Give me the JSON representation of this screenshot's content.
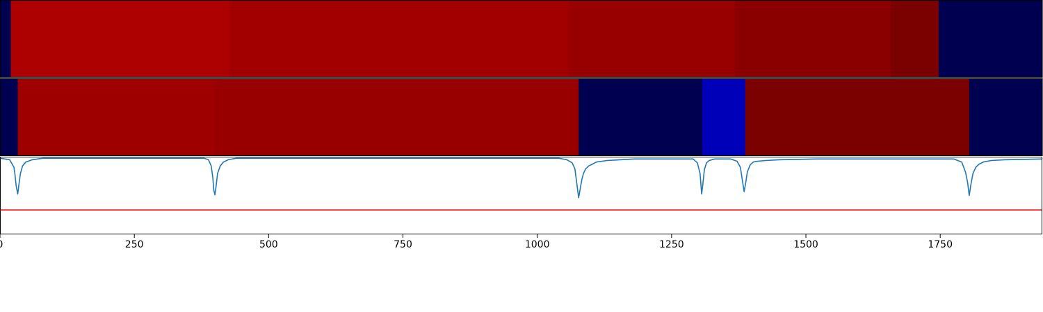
{
  "chart_data": [
    {
      "type": "heatmap",
      "xlim": [
        0,
        1940
      ],
      "segments": [
        {
          "start": 0,
          "end": 20,
          "color": "#000050"
        },
        {
          "start": 20,
          "end": 427,
          "color": "#ad0000"
        },
        {
          "start": 427,
          "end": 1058,
          "color": "#a20000"
        },
        {
          "start": 1058,
          "end": 1368,
          "color": "#980000"
        },
        {
          "start": 1368,
          "end": 1658,
          "color": "#8a0000"
        },
        {
          "start": 1658,
          "end": 1747,
          "color": "#7b0000"
        },
        {
          "start": 1747,
          "end": 1940,
          "color": "#000050"
        }
      ]
    },
    {
      "type": "heatmap",
      "xlim": [
        0,
        1940
      ],
      "segments": [
        {
          "start": 0,
          "end": 33,
          "color": "#000050"
        },
        {
          "start": 33,
          "end": 400,
          "color": "#9e0000"
        },
        {
          "start": 400,
          "end": 1077,
          "color": "#980000"
        },
        {
          "start": 1077,
          "end": 1307,
          "color": "#000050"
        },
        {
          "start": 1307,
          "end": 1387,
          "color": "#0000b8"
        },
        {
          "start": 1387,
          "end": 1804,
          "color": "#7b0000"
        },
        {
          "start": 1804,
          "end": 1940,
          "color": "#000050"
        }
      ]
    },
    {
      "type": "line",
      "xlim": [
        0,
        1940
      ],
      "ylim": [
        -1.0,
        0.02
      ],
      "xticks": [
        0,
        250,
        500,
        750,
        1000,
        1250,
        1500,
        1750
      ],
      "xtick_labels": [
        "0",
        "250",
        "500",
        "750",
        "1000",
        "1250",
        "1500",
        "1750"
      ],
      "threshold": {
        "value": -0.68,
        "color": "#ff0000"
      },
      "series": [
        {
          "color": "#1f77b4",
          "x": [
            0,
            18,
            26,
            28,
            30,
            33,
            35,
            38,
            42,
            48,
            60,
            80,
            380,
            388,
            393,
            396,
            398,
            400,
            402,
            405,
            410,
            416,
            425,
            440,
            1040,
            1055,
            1065,
            1070,
            1073,
            1077,
            1080,
            1083,
            1086,
            1090,
            1096,
            1102,
            1110,
            1130,
            1180,
            1290,
            1298,
            1303,
            1306,
            1308,
            1311,
            1315,
            1320,
            1330,
            1360,
            1372,
            1378,
            1382,
            1385,
            1388,
            1391,
            1396,
            1402,
            1410,
            1425,
            1450,
            1520,
            1775,
            1790,
            1797,
            1801,
            1804,
            1807,
            1811,
            1816,
            1822,
            1830,
            1845,
            1870,
            1940
          ],
          "y": [
            0,
            -0.02,
            -0.12,
            -0.22,
            -0.36,
            -0.47,
            -0.36,
            -0.2,
            -0.1,
            -0.05,
            -0.02,
            0,
            0,
            -0.02,
            -0.1,
            -0.25,
            -0.42,
            -0.48,
            -0.38,
            -0.2,
            -0.1,
            -0.05,
            -0.02,
            0,
            0,
            -0.02,
            -0.06,
            -0.14,
            -0.3,
            -0.52,
            -0.4,
            -0.28,
            -0.2,
            -0.14,
            -0.1,
            -0.08,
            -0.05,
            -0.03,
            -0.01,
            -0.01,
            -0.06,
            -0.2,
            -0.47,
            -0.35,
            -0.15,
            -0.06,
            -0.03,
            -0.01,
            -0.01,
            -0.04,
            -0.12,
            -0.3,
            -0.44,
            -0.32,
            -0.18,
            -0.09,
            -0.05,
            -0.04,
            -0.03,
            -0.02,
            -0.01,
            -0.01,
            -0.05,
            -0.18,
            -0.32,
            -0.49,
            -0.35,
            -0.2,
            -0.12,
            -0.08,
            -0.05,
            -0.03,
            -0.02,
            -0.01
          ]
        }
      ]
    }
  ]
}
